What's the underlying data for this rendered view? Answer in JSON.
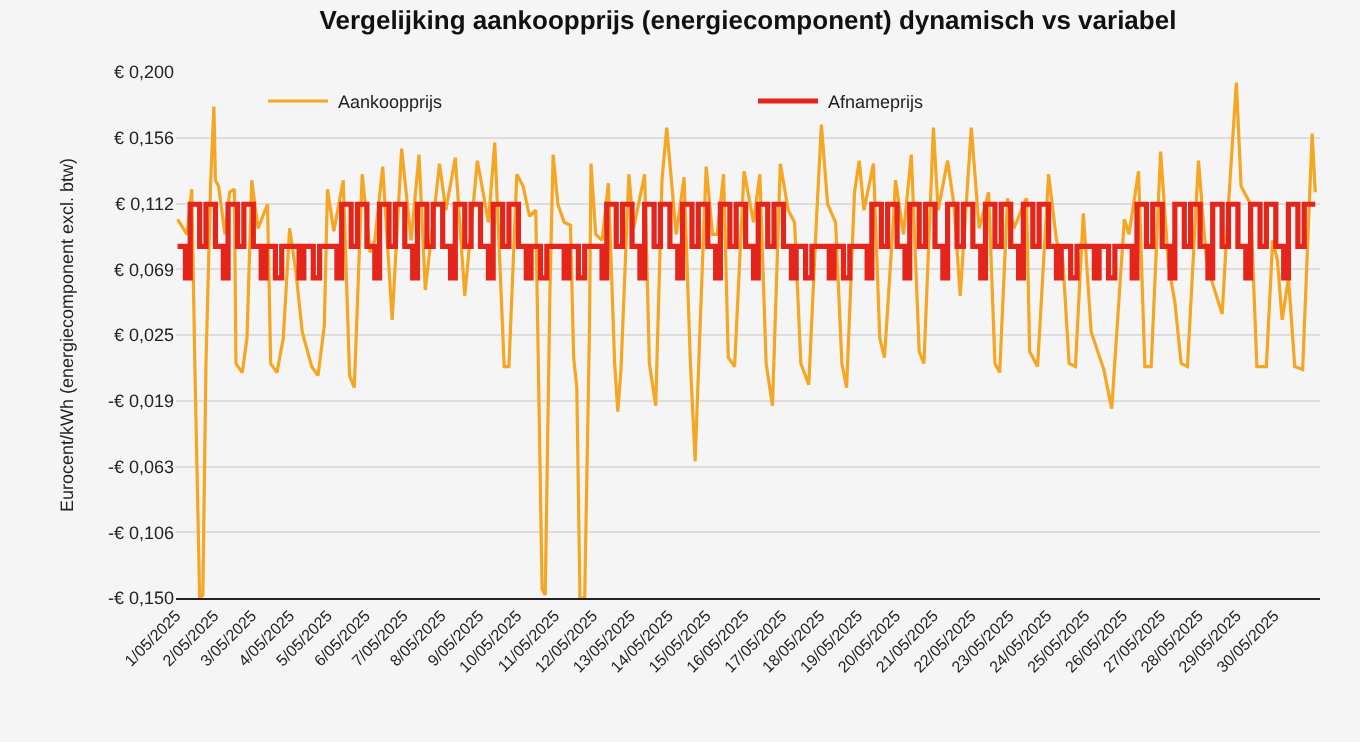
{
  "chart_data": {
    "type": "line",
    "title": "Vergelijking aankoopprijs (energiecomponent) dynamisch vs variabel",
    "ylabel": "Eurocent/kWh (energiecomponent excl. btw)",
    "xlim": [
      "2025-05-01T00:00",
      "2025-05-31T05:00"
    ],
    "xticks": [
      {
        "value": "2025-05-01",
        "label": "1/05/2025"
      },
      {
        "value": "2025-05-02",
        "label": "2/05/2025"
      },
      {
        "value": "2025-05-03",
        "label": "3/05/2025"
      },
      {
        "value": "2025-05-04",
        "label": "4/05/2025"
      },
      {
        "value": "2025-05-05",
        "label": "5/05/2025"
      },
      {
        "value": "2025-05-06",
        "label": "6/05/2025"
      },
      {
        "value": "2025-05-07",
        "label": "7/05/2025"
      },
      {
        "value": "2025-05-08",
        "label": "8/05/2025"
      },
      {
        "value": "2025-05-09",
        "label": "9/05/2025"
      },
      {
        "value": "2025-05-10",
        "label": "10/05/2025"
      },
      {
        "value": "2025-05-11",
        "label": "11/05/2025"
      },
      {
        "value": "2025-05-12",
        "label": "12/05/2025"
      },
      {
        "value": "2025-05-13",
        "label": "13/05/2025"
      },
      {
        "value": "2025-05-14",
        "label": "14/05/2025"
      },
      {
        "value": "2025-05-15",
        "label": "15/05/2025"
      },
      {
        "value": "2025-05-16",
        "label": "16/05/2025"
      },
      {
        "value": "2025-05-17",
        "label": "17/05/2025"
      },
      {
        "value": "2025-05-18",
        "label": "18/05/2025"
      },
      {
        "value": "2025-05-19",
        "label": "19/05/2025"
      },
      {
        "value": "2025-05-20",
        "label": "20/05/2025"
      },
      {
        "value": "2025-05-21",
        "label": "21/05/2025"
      },
      {
        "value": "2025-05-22",
        "label": "22/05/2025"
      },
      {
        "value": "2025-05-23",
        "label": "23/05/2025"
      },
      {
        "value": "2025-05-24",
        "label": "24/05/2025"
      },
      {
        "value": "2025-05-25",
        "label": "25/05/2025"
      },
      {
        "value": "2025-05-26",
        "label": "26/05/2025"
      },
      {
        "value": "2025-05-27",
        "label": "27/05/2025"
      },
      {
        "value": "2025-05-28",
        "label": "28/05/2025"
      },
      {
        "value": "2025-05-29",
        "label": "29/05/2025"
      },
      {
        "value": "2025-05-30",
        "label": "30/05/2025"
      }
    ],
    "ylim": [
      -0.15,
      0.2
    ],
    "yticks": [
      {
        "value": -0.15,
        "label": "-€ 0,150"
      },
      {
        "value": -0.10625,
        "label": "-€ 0,106"
      },
      {
        "value": -0.0625,
        "label": "-€ 0,063"
      },
      {
        "value": -0.01875,
        "label": "-€ 0,019"
      },
      {
        "value": 0.025,
        "label": "€ 0,025"
      },
      {
        "value": 0.06875,
        "label": "€ 0,069"
      },
      {
        "value": 0.1125,
        "label": "€ 0,112"
      },
      {
        "value": 0.15625,
        "label": "€ 0,156"
      },
      {
        "value": 0.2,
        "label": "€ 0,200"
      }
    ],
    "grid": "y",
    "legend": "top",
    "series": [
      {
        "name": "Aankoopprijs",
        "color": "#f5a623",
        "x": [
          "2025-05-01T01:00",
          "2025-05-01T07:00",
          "2025-05-01T10:00",
          "2025-05-01T12:00",
          "2025-05-01T15:00",
          "2025-05-01T17:00",
          "2025-05-01T19:00",
          "2025-05-01T22:00",
          "2025-05-02T00:00",
          "2025-05-02T01:00",
          "2025-05-02T03:00",
          "2025-05-02T07:00",
          "2025-05-02T10:00",
          "2025-05-02T13:00",
          "2025-05-02T14:00",
          "2025-05-02T18:00",
          "2025-05-02T21:00",
          "2025-05-03T00:00",
          "2025-05-03T04:00",
          "2025-05-03T10:00",
          "2025-05-03T12:00",
          "2025-05-03T16:00",
          "2025-05-03T20:00",
          "2025-05-04T00:00",
          "2025-05-04T04:00",
          "2025-05-04T08:00",
          "2025-05-04T14:00",
          "2025-05-04T18:00",
          "2025-05-04T22:00",
          "2025-05-05T00:00",
          "2025-05-05T04:00",
          "2025-05-05T10:00",
          "2025-05-05T14:00",
          "2025-05-05T17:00",
          "2025-05-05T22:00",
          "2025-05-06T03:00",
          "2025-05-06T06:00",
          "2025-05-06T11:00",
          "2025-05-06T17:00",
          "2025-05-06T23:00",
          "2025-05-07T05:00",
          "2025-05-07T10:00",
          "2025-05-07T14:00",
          "2025-05-07T23:00",
          "2025-05-08T03:00",
          "2025-05-08T09:00",
          "2025-05-08T15:00",
          "2025-05-08T23:00",
          "2025-05-09T06:00",
          "2025-05-09T10:00",
          "2025-05-09T16:00",
          "2025-05-09T19:00",
          "2025-05-10T00:00",
          "2025-05-10T04:00",
          "2025-05-10T08:00",
          "2025-05-10T12:00",
          "2025-05-10T16:00",
          "2025-05-10T18:00",
          "2025-05-10T21:00",
          "2025-05-10T23:00",
          "2025-05-11T02:00",
          "2025-05-11T06:00",
          "2025-05-11T10:00",
          "2025-05-11T12:00",
          "2025-05-11T14:00",
          "2025-05-11T16:00",
          "2025-05-11T19:00",
          "2025-05-11T22:00",
          "2025-05-11T23:00",
          "2025-05-12T02:00",
          "2025-05-12T06:00",
          "2025-05-12T10:00",
          "2025-05-12T14:00",
          "2025-05-12T16:00",
          "2025-05-12T18:00",
          "2025-05-12T23:00",
          "2025-05-13T02:00",
          "2025-05-13T09:00",
          "2025-05-13T12:00",
          "2025-05-13T16:00",
          "2025-05-13T20:00",
          "2025-05-13T23:00",
          "2025-05-14T05:00",
          "2025-05-14T10:00",
          "2025-05-14T14:00",
          "2025-05-14T17:00",
          "2025-05-14T21:00",
          "2025-05-15T00:00",
          "2025-05-15T04:00",
          "2025-05-15T07:00",
          "2025-05-15T11:00",
          "2025-05-15T14:00",
          "2025-05-15T18:00",
          "2025-05-16T00:00",
          "2025-05-16T06:00",
          "2025-05-16T10:00",
          "2025-05-16T14:00",
          "2025-05-16T18:00",
          "2025-05-16T23:00",
          "2025-05-17T04:00",
          "2025-05-17T08:00",
          "2025-05-17T12:00",
          "2025-05-17T17:00",
          "2025-05-17T22:00",
          "2025-05-18T01:00",
          "2025-05-18T05:00",
          "2025-05-18T10:00",
          "2025-05-18T14:00",
          "2025-05-18T17:00",
          "2025-05-18T22:00",
          "2025-05-19T01:00",
          "2025-05-19T04:00",
          "2025-05-19T10:00",
          "2025-05-19T14:00",
          "2025-05-19T17:00",
          "2025-05-19T23:00",
          "2025-05-20T00:00",
          "2025-05-20T05:00",
          "2025-05-20T10:00",
          "2025-05-20T15:00",
          "2025-05-20T18:00",
          "2025-05-21T00:00",
          "2025-05-21T03:00",
          "2025-05-21T09:00",
          "2025-05-21T13:00",
          "2025-05-21T17:00",
          "2025-05-22T00:00",
          "2025-05-22T05:00",
          "2025-05-22T11:00",
          "2025-05-22T15:00",
          "2025-05-22T18:00",
          "2025-05-22T23:00",
          "2025-05-23T03:00",
          "2025-05-23T11:00",
          "2025-05-23T13:00",
          "2025-05-23T18:00",
          "2025-05-24T01:00",
          "2025-05-24T06:00",
          "2025-05-24T10:00",
          "2025-05-24T14:00",
          "2025-05-24T18:00",
          "2025-05-24T23:00",
          "2025-05-25T04:00",
          "2025-05-25T12:00",
          "2025-05-25T17:00",
          "2025-05-25T22:00",
          "2025-05-26T01:00",
          "2025-05-26T04:00",
          "2025-05-26T10:00",
          "2025-05-26T14:00",
          "2025-05-26T18:00",
          "2025-05-27T00:00",
          "2025-05-27T05:00",
          "2025-05-27T09:00",
          "2025-05-27T13:00",
          "2025-05-27T17:00",
          "2025-05-28T00:00",
          "2025-05-28T05:00",
          "2025-05-28T09:00",
          "2025-05-28T15:00",
          "2025-05-28T19:00",
          "2025-05-29T00:00",
          "2025-05-29T03:00",
          "2025-05-29T09:00",
          "2025-05-29T13:00",
          "2025-05-29T19:00",
          "2025-05-29T23:00",
          "2025-05-30T02:00",
          "2025-05-30T05:00",
          "2025-05-30T09:00",
          "2025-05-30T13:00",
          "2025-05-30T18:00",
          "2025-05-31T00:00",
          "2025-05-31T02:00"
        ],
        "values": [
          0.102,
          0.092,
          0.122,
          0.002,
          -0.15,
          -0.148,
          0.006,
          0.128,
          0.177,
          0.128,
          0.124,
          0.092,
          0.12,
          0.122,
          0.006,
          0.0,
          0.023,
          0.128,
          0.096,
          0.112,
          0.006,
          0.0,
          0.023,
          0.096,
          0.067,
          0.027,
          0.004,
          -0.002,
          0.031,
          0.122,
          0.094,
          0.128,
          -0.002,
          -0.01,
          0.132,
          0.08,
          0.088,
          0.137,
          0.035,
          0.149,
          0.088,
          0.145,
          0.055,
          0.139,
          0.108,
          0.143,
          0.051,
          0.141,
          0.1,
          0.153,
          0.004,
          0.004,
          0.132,
          0.124,
          0.104,
          0.108,
          -0.144,
          -0.148,
          0.055,
          0.145,
          0.112,
          0.1,
          0.098,
          0.01,
          -0.01,
          -0.15,
          -0.15,
          0.027,
          0.139,
          0.092,
          0.088,
          0.126,
          0.006,
          -0.026,
          0.002,
          0.132,
          0.096,
          0.132,
          0.006,
          -0.022,
          0.128,
          0.163,
          0.092,
          0.13,
          0.006,
          -0.059,
          0.055,
          0.137,
          0.092,
          0.092,
          0.132,
          0.01,
          0.004,
          0.134,
          0.1,
          0.132,
          0.006,
          -0.022,
          0.139,
          0.108,
          0.1,
          0.006,
          -0.008,
          0.104,
          0.165,
          0.112,
          0.1,
          0.006,
          -0.01,
          0.12,
          0.141,
          0.108,
          0.139,
          0.023,
          0.01,
          0.108,
          0.128,
          0.092,
          0.145,
          0.014,
          0.006,
          0.163,
          0.108,
          0.141,
          0.112,
          0.051,
          0.163,
          0.096,
          0.12,
          0.006,
          0.0,
          0.116,
          0.096,
          0.116,
          0.014,
          0.004,
          0.132,
          0.088,
          0.075,
          0.006,
          0.004,
          0.106,
          0.027,
          0.002,
          -0.024,
          0.055,
          0.102,
          0.092,
          0.134,
          0.004,
          0.004,
          0.147,
          0.071,
          0.047,
          0.006,
          0.004,
          0.141,
          0.075,
          0.059,
          0.039,
          0.112,
          0.193,
          0.124,
          0.112,
          0.004,
          0.004,
          0.088,
          0.075,
          0.035,
          0.063,
          0.004,
          0.002,
          0.159,
          0.12
        ]
      },
      {
        "name": "Afnameprijs",
        "color": "#e3251b",
        "type": "step",
        "x": [
          "2025-05-01T01:00",
          "2025-05-01T06:00",
          "2025-05-01T09:00",
          "2025-05-01T15:00",
          "2025-05-01T19:00",
          "2025-05-02T01:00",
          "2025-05-02T06:00",
          "2025-05-02T09:00",
          "2025-05-02T15:00",
          "2025-05-02T19:00",
          "2025-05-03T01:00",
          "2025-05-03T06:00",
          "2025-05-03T09:00",
          "2025-05-03T15:00",
          "2025-05-03T19:00",
          "2025-05-04T01:00",
          "2025-05-04T06:00",
          "2025-05-04T09:00",
          "2025-05-04T15:00",
          "2025-05-04T19:00",
          "2025-05-05T01:00",
          "2025-05-05T06:00",
          "2025-05-05T09:00",
          "2025-05-05T15:00",
          "2025-05-05T19:00",
          "2025-05-06T01:00",
          "2025-05-06T06:00",
          "2025-05-06T09:00",
          "2025-05-06T15:00",
          "2025-05-06T19:00",
          "2025-05-07T01:00",
          "2025-05-07T06:00",
          "2025-05-07T09:00",
          "2025-05-07T15:00",
          "2025-05-07T19:00",
          "2025-05-08T01:00",
          "2025-05-08T06:00",
          "2025-05-08T09:00",
          "2025-05-08T15:00",
          "2025-05-08T19:00",
          "2025-05-09T01:00",
          "2025-05-09T06:00",
          "2025-05-09T09:00",
          "2025-05-09T15:00",
          "2025-05-09T19:00",
          "2025-05-10T01:00",
          "2025-05-10T06:00",
          "2025-05-10T09:00",
          "2025-05-10T15:00",
          "2025-05-10T19:00",
          "2025-05-11T01:00",
          "2025-05-11T06:00",
          "2025-05-11T09:00",
          "2025-05-11T15:00",
          "2025-05-11T19:00",
          "2025-05-12T01:00",
          "2025-05-12T06:00",
          "2025-05-12T09:00",
          "2025-05-12T15:00",
          "2025-05-12T19:00",
          "2025-05-13T01:00",
          "2025-05-13T06:00",
          "2025-05-13T09:00",
          "2025-05-13T15:00",
          "2025-05-13T19:00",
          "2025-05-14T01:00",
          "2025-05-14T06:00",
          "2025-05-14T09:00",
          "2025-05-14T15:00",
          "2025-05-14T19:00",
          "2025-05-15T01:00",
          "2025-05-15T06:00",
          "2025-05-15T09:00",
          "2025-05-15T15:00",
          "2025-05-15T19:00",
          "2025-05-16T01:00",
          "2025-05-16T06:00",
          "2025-05-16T09:00",
          "2025-05-16T15:00",
          "2025-05-16T19:00",
          "2025-05-17T01:00",
          "2025-05-17T06:00",
          "2025-05-17T09:00",
          "2025-05-17T15:00",
          "2025-05-17T19:00",
          "2025-05-18T01:00",
          "2025-05-18T06:00",
          "2025-05-18T09:00",
          "2025-05-18T15:00",
          "2025-05-18T19:00",
          "2025-05-19T01:00",
          "2025-05-19T06:00",
          "2025-05-19T09:00",
          "2025-05-19T15:00",
          "2025-05-19T19:00",
          "2025-05-20T01:00",
          "2025-05-20T06:00",
          "2025-05-20T09:00",
          "2025-05-20T15:00",
          "2025-05-20T19:00",
          "2025-05-21T01:00",
          "2025-05-21T06:00",
          "2025-05-21T09:00",
          "2025-05-21T15:00",
          "2025-05-21T19:00",
          "2025-05-22T01:00",
          "2025-05-22T06:00",
          "2025-05-22T09:00",
          "2025-05-22T15:00",
          "2025-05-22T19:00",
          "2025-05-23T01:00",
          "2025-05-23T06:00",
          "2025-05-23T09:00",
          "2025-05-23T15:00",
          "2025-05-23T19:00",
          "2025-05-24T01:00",
          "2025-05-24T06:00",
          "2025-05-24T09:00",
          "2025-05-24T15:00",
          "2025-05-24T19:00",
          "2025-05-25T01:00",
          "2025-05-25T06:00",
          "2025-05-25T09:00",
          "2025-05-25T15:00",
          "2025-05-25T19:00",
          "2025-05-26T01:00",
          "2025-05-26T06:00",
          "2025-05-26T09:00",
          "2025-05-26T15:00",
          "2025-05-26T19:00",
          "2025-05-27T01:00",
          "2025-05-27T06:00",
          "2025-05-27T09:00",
          "2025-05-27T15:00",
          "2025-05-27T19:00",
          "2025-05-28T01:00",
          "2025-05-28T06:00",
          "2025-05-28T09:00",
          "2025-05-28T15:00",
          "2025-05-28T19:00",
          "2025-05-29T01:00",
          "2025-05-29T06:00",
          "2025-05-29T09:00",
          "2025-05-29T15:00",
          "2025-05-29T19:00",
          "2025-05-30T01:00",
          "2025-05-30T06:00",
          "2025-05-30T09:00",
          "2025-05-30T15:00",
          "2025-05-30T19:00",
          "2025-05-31T02:00"
        ],
        "values": [
          0.084,
          0.063,
          0.112,
          0.084,
          0.112,
          0.084,
          0.063,
          0.112,
          0.084,
          0.112,
          0.084,
          0.063,
          0.084,
          0.063,
          0.084,
          0.084,
          0.063,
          0.084,
          0.063,
          0.084,
          0.084,
          0.063,
          0.112,
          0.084,
          0.112,
          0.084,
          0.063,
          0.112,
          0.084,
          0.112,
          0.084,
          0.063,
          0.112,
          0.084,
          0.112,
          0.084,
          0.063,
          0.112,
          0.084,
          0.112,
          0.084,
          0.063,
          0.112,
          0.084,
          0.112,
          0.084,
          0.063,
          0.084,
          0.063,
          0.084,
          0.084,
          0.063,
          0.084,
          0.063,
          0.084,
          0.084,
          0.063,
          0.112,
          0.084,
          0.112,
          0.084,
          0.063,
          0.112,
          0.084,
          0.112,
          0.084,
          0.063,
          0.112,
          0.084,
          0.112,
          0.084,
          0.063,
          0.112,
          0.084,
          0.112,
          0.084,
          0.063,
          0.112,
          0.084,
          0.112,
          0.084,
          0.063,
          0.084,
          0.063,
          0.084,
          0.084,
          0.063,
          0.084,
          0.063,
          0.084,
          0.084,
          0.063,
          0.112,
          0.084,
          0.112,
          0.084,
          0.063,
          0.112,
          0.084,
          0.112,
          0.084,
          0.063,
          0.112,
          0.084,
          0.112,
          0.084,
          0.063,
          0.112,
          0.084,
          0.112,
          0.084,
          0.063,
          0.112,
          0.084,
          0.112,
          0.084,
          0.063,
          0.084,
          0.063,
          0.084,
          0.084,
          0.063,
          0.084,
          0.063,
          0.084,
          0.084,
          0.063,
          0.112,
          0.084,
          0.112,
          0.084,
          0.063,
          0.112,
          0.084,
          0.112,
          0.084,
          0.063,
          0.112,
          0.084,
          0.112,
          0.084,
          0.063,
          0.112,
          0.084,
          0.112,
          0.084,
          0.063,
          0.112,
          0.084,
          0.112,
          0.112
        ]
      }
    ]
  }
}
